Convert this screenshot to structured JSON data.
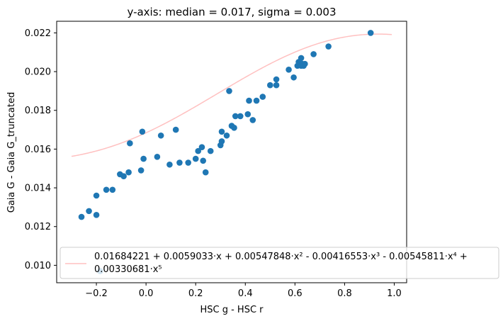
{
  "chart_data": {
    "type": "scatter",
    "title": "y-axis: median = 0.017, sigma = 0.003",
    "xlabel": "HSC g - HSC r",
    "ylabel": "Gaia G - Gaia G_truncated",
    "xlim": [
      -0.36,
      1.05
    ],
    "ylim": [
      0.0091,
      0.0226
    ],
    "xticks": [
      -0.2,
      0.0,
      0.2,
      0.4,
      0.6,
      0.8,
      1.0
    ],
    "xtick_labels": [
      "−0.2",
      "0.0",
      "0.2",
      "0.4",
      "0.6",
      "0.8",
      "1.0"
    ],
    "yticks": [
      0.01,
      0.012,
      0.014,
      0.016,
      0.018,
      0.02,
      0.022
    ],
    "ytick_labels": [
      "0.010",
      "0.012",
      "0.014",
      "0.016",
      "0.018",
      "0.020",
      "0.022"
    ],
    "grid": false,
    "legend_placement": "lower-left",
    "scatter": {
      "color": "#1f77b4",
      "points": [
        [
          -0.26,
          0.0125
        ],
        [
          -0.23,
          0.0128
        ],
        [
          -0.2,
          0.0126
        ],
        [
          -0.2,
          0.0136
        ],
        [
          -0.16,
          0.0139
        ],
        [
          -0.135,
          0.0139
        ],
        [
          -0.105,
          0.0147
        ],
        [
          -0.09,
          0.0146
        ],
        [
          -0.07,
          0.0148
        ],
        [
          -0.065,
          0.0163
        ],
        [
          -0.02,
          0.0149
        ],
        [
          -0.015,
          0.0169
        ],
        [
          -0.01,
          0.0155
        ],
        [
          0.045,
          0.0156
        ],
        [
          0.06,
          0.0167
        ],
        [
          0.095,
          0.0152
        ],
        [
          0.12,
          0.017
        ],
        [
          0.135,
          0.0153
        ],
        [
          0.17,
          0.0153
        ],
        [
          0.2,
          0.0155
        ],
        [
          0.21,
          0.0159
        ],
        [
          0.225,
          0.0161
        ],
        [
          0.23,
          0.0154
        ],
        [
          0.24,
          0.0148
        ],
        [
          0.26,
          0.0159
        ],
        [
          0.3,
          0.0162
        ],
        [
          0.305,
          0.0169
        ],
        [
          0.305,
          0.0164
        ],
        [
          0.325,
          0.0167
        ],
        [
          0.335,
          0.019
        ],
        [
          0.345,
          0.0172
        ],
        [
          0.355,
          0.0171
        ],
        [
          0.36,
          0.0177
        ],
        [
          0.38,
          0.0177
        ],
        [
          0.41,
          0.0178
        ],
        [
          0.415,
          0.0185
        ],
        [
          0.43,
          0.0175
        ],
        [
          0.445,
          0.0185
        ],
        [
          0.47,
          0.0187
        ],
        [
          0.5,
          0.0193
        ],
        [
          0.525,
          0.0193
        ],
        [
          0.525,
          0.0196
        ],
        [
          0.575,
          0.0201
        ],
        [
          0.595,
          0.0197
        ],
        [
          0.61,
          0.0203
        ],
        [
          0.615,
          0.0205
        ],
        [
          0.62,
          0.0204
        ],
        [
          0.625,
          0.0203
        ],
        [
          0.63,
          0.0204
        ],
        [
          0.625,
          0.0207
        ],
        [
          0.635,
          0.0203
        ],
        [
          0.64,
          0.0204
        ],
        [
          0.675,
          0.0209
        ],
        [
          0.735,
          0.0213
        ],
        [
          0.905,
          0.022
        ],
        [
          -0.185,
          0.0097
        ]
      ]
    },
    "fit_line": {
      "color": "#ffc0c0",
      "x_range": [
        -0.3,
        0.99
      ],
      "coefficients": [
        0.01684221,
        0.0059033,
        0.00547848,
        -0.00416553,
        -0.00545811,
        0.00330681
      ]
    },
    "legend": {
      "line1": "0.01684221 + 0.0059033·x + 0.00547848·x² - 0.00416553·x³ - 0.00545811·x⁴ +",
      "line2": "0.00330681·x⁵"
    }
  }
}
